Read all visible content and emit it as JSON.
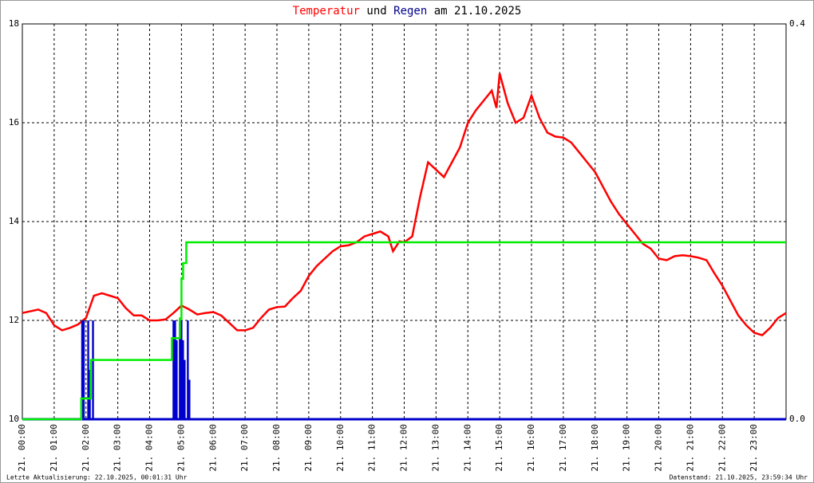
{
  "chart_data": {
    "type": "line",
    "title": [
      "Temperatur",
      "und",
      "Regen",
      "am 21.10.2025"
    ],
    "title_colors": [
      "#ff0000",
      "#000000",
      "#00008b",
      "#000000"
    ],
    "footer_left": "Letzte Aktualisierung: 22.10.2025, 00:01:31 Uhr",
    "footer_right": "Datenstand: 21.10.2025, 23:59:34 Uhr",
    "xlim": [
      0,
      24
    ],
    "xticks": [
      {
        "value": 0,
        "label": "21. 00:00"
      },
      {
        "value": 1,
        "label": "21. 01:00"
      },
      {
        "value": 2,
        "label": "21. 02:00"
      },
      {
        "value": 3,
        "label": "21. 03:00"
      },
      {
        "value": 4,
        "label": "21. 04:00"
      },
      {
        "value": 5,
        "label": "21. 05:00"
      },
      {
        "value": 6,
        "label": "21. 06:00"
      },
      {
        "value": 7,
        "label": "21. 07:00"
      },
      {
        "value": 8,
        "label": "21. 08:00"
      },
      {
        "value": 9,
        "label": "21. 09:00"
      },
      {
        "value": 10,
        "label": "21. 10:00"
      },
      {
        "value": 11,
        "label": "21. 11:00"
      },
      {
        "value": 12,
        "label": "21. 12:00"
      },
      {
        "value": 13,
        "label": "21. 13:00"
      },
      {
        "value": 14,
        "label": "21. 14:00"
      },
      {
        "value": 15,
        "label": "21. 15:00"
      },
      {
        "value": 16,
        "label": "21. 16:00"
      },
      {
        "value": 17,
        "label": "21. 17:00"
      },
      {
        "value": 18,
        "label": "21. 18:00"
      },
      {
        "value": 19,
        "label": "21. 19:00"
      },
      {
        "value": 20,
        "label": "21. 20:00"
      },
      {
        "value": 21,
        "label": "21. 21:00"
      },
      {
        "value": 22,
        "label": "21. 22:00"
      },
      {
        "value": 23,
        "label": "21. 23:00"
      }
    ],
    "ylim": [
      10,
      18
    ],
    "yticks": [
      10,
      12,
      14,
      16,
      18
    ],
    "y2lim": [
      0,
      0.4
    ],
    "y2ticks": [
      {
        "value": 0,
        "label": "0.0"
      },
      0.4
    ],
    "grid": true,
    "series": [
      {
        "name": "Temperatur",
        "color": "#ff0000",
        "kind": "line",
        "x": [
          0,
          0.5,
          0.75,
          1,
          1.25,
          1.5,
          1.75,
          2,
          2.25,
          2.5,
          2.75,
          3,
          3.25,
          3.5,
          3.75,
          4,
          4.25,
          4.5,
          4.75,
          5,
          5.25,
          5.5,
          5.75,
          6,
          6.25,
          6.5,
          6.75,
          7,
          7.25,
          7.5,
          7.75,
          8,
          8.25,
          8.5,
          8.75,
          9,
          9.25,
          9.5,
          9.75,
          10,
          10.25,
          10.5,
          10.75,
          11,
          11.25,
          11.5,
          11.65,
          11.85,
          12,
          12.25,
          12.5,
          12.75,
          13,
          13.25,
          13.5,
          13.75,
          14,
          14.25,
          14.5,
          14.75,
          14.9,
          15,
          15.25,
          15.5,
          15.75,
          16,
          16.25,
          16.5,
          16.75,
          17,
          17.25,
          17.5,
          17.75,
          18,
          18.25,
          18.5,
          18.75,
          19,
          19.25,
          19.5,
          19.75,
          20,
          20.25,
          20.5,
          20.75,
          21,
          21.25,
          21.5,
          21.75,
          22,
          22.25,
          22.5,
          22.75,
          23,
          23.25,
          23.5,
          23.75,
          24
        ],
        "values": [
          12.15,
          12.22,
          12.15,
          11.9,
          11.8,
          11.85,
          11.92,
          12.05,
          12.5,
          12.55,
          12.5,
          12.45,
          12.25,
          12.1,
          12.1,
          12,
          12,
          12.02,
          12.15,
          12.3,
          12.22,
          12.12,
          12.15,
          12.17,
          12.1,
          11.95,
          11.8,
          11.8,
          11.85,
          12.05,
          12.22,
          12.27,
          12.28,
          12.45,
          12.6,
          12.9,
          13.1,
          13.25,
          13.4,
          13.5,
          13.52,
          13.58,
          13.7,
          13.75,
          13.8,
          13.7,
          13.4,
          13.6,
          13.58,
          13.7,
          14.5,
          15.2,
          15.05,
          14.9,
          15.2,
          15.5,
          16,
          16.25,
          16.45,
          16.65,
          16.3,
          17,
          16.4,
          16,
          16.1,
          16.55,
          16.1,
          15.8,
          15.72,
          15.7,
          15.6,
          15.4,
          15.2,
          15,
          14.7,
          14.4,
          14.15,
          13.95,
          13.75,
          13.55,
          13.45,
          13.25,
          13.22,
          13.3,
          13.32,
          13.3,
          13.27,
          13.22,
          12.95,
          12.7,
          12.4,
          12.1,
          11.9,
          11.75,
          11.7,
          11.85,
          12.05,
          12.15
        ]
      },
      {
        "name": "Regen",
        "color": "#0000cc",
        "kind": "bar",
        "axis": "y2",
        "x": [
          1.88,
          1.93,
          2.07,
          2.12,
          2.22,
          4.75,
          4.8,
          4.85,
          4.95,
          5,
          5.05,
          5.1,
          5.2,
          5.25
        ],
        "values": [
          0.1,
          0.1,
          0.1,
          0.05,
          0.1,
          0.1,
          0.1,
          0.08,
          0.1,
          0.1,
          0.08,
          0.06,
          0.1,
          0.04
        ]
      },
      {
        "color": "#00ee00",
        "kind": "line",
        "axis": "y2",
        "x": [
          0,
          1.85,
          1.85,
          2.15,
          2.15,
          4.7,
          4.7,
          4.95,
          4.95,
          5,
          5,
          5.05,
          5.05,
          5.15,
          5.15,
          24
        ],
        "values": [
          0,
          0,
          0.021,
          0.021,
          0.06,
          0.06,
          0.082,
          0.082,
          0.102,
          0.102,
          0.142,
          0.142,
          0.158,
          0.158,
          0.179,
          0.179
        ]
      }
    ]
  }
}
